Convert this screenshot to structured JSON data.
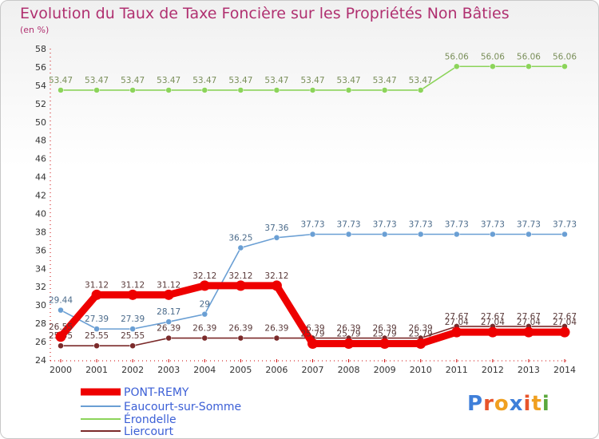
{
  "chart_data": {
    "type": "line",
    "title": "Evolution du Taux de Taxe Foncière sur les Propriétés Non Bâties",
    "subtitle": "(en %)",
    "x": [
      "2000",
      "2001",
      "2002",
      "2003",
      "2004",
      "2005",
      "2006",
      "2007",
      "2008",
      "2009",
      "2010",
      "2011",
      "2012",
      "2013",
      "2014"
    ],
    "ylim": [
      24,
      58
    ],
    "yticks": [
      24,
      26,
      28,
      30,
      32,
      34,
      36,
      38,
      40,
      42,
      44,
      46,
      48,
      50,
      52,
      54,
      56,
      58
    ],
    "grid": false,
    "legend_position": "bottom-left",
    "series": [
      {
        "name": "PONT-REMY",
        "color": "#ee0000",
        "values": [
          26.55,
          31.12,
          31.12,
          31.12,
          32.12,
          32.12,
          32.12,
          25.79,
          25.79,
          25.79,
          25.79,
          27.04,
          27.04,
          27.04,
          27.04
        ],
        "labels": [
          "26.55",
          "31.12",
          "31.12",
          "31.12",
          "32.12",
          "32.12",
          "32.12",
          "25.79",
          "25.79",
          "25.79",
          "25.79",
          "27.04",
          "27.04",
          "27.04",
          "27.04"
        ]
      },
      {
        "name": "Eaucourt-sur-Somme",
        "color": "#6a9fd4",
        "values": [
          29.44,
          27.39,
          27.39,
          28.17,
          29,
          36.25,
          37.36,
          37.73,
          37.73,
          37.73,
          37.73,
          37.73,
          37.73,
          37.73,
          37.73
        ],
        "labels": [
          "29.44",
          "27.39",
          "27.39",
          "28.17",
          "29",
          "36.25",
          "37.36",
          "37.73",
          "37.73",
          "37.73",
          "37.73",
          "37.73",
          "37.73",
          "37.73",
          "37.73"
        ]
      },
      {
        "name": "Érondelle",
        "color": "#8cd45a",
        "values": [
          53.47,
          53.47,
          53.47,
          53.47,
          53.47,
          53.47,
          53.47,
          53.47,
          53.47,
          53.47,
          53.47,
          56.06,
          56.06,
          56.06,
          56.06
        ],
        "labels": [
          "53.47",
          "53.47",
          "53.47",
          "53.47",
          "53.47",
          "53.47",
          "53.47",
          "53.47",
          "53.47",
          "53.47",
          "53.47",
          "56.06",
          "56.06",
          "56.06",
          "56.06"
        ]
      },
      {
        "name": "Liercourt",
        "color": "#7b2a2a",
        "values": [
          25.55,
          25.55,
          25.55,
          26.39,
          26.39,
          26.39,
          26.39,
          26.39,
          26.39,
          26.39,
          26.39,
          27.67,
          27.67,
          27.67,
          27.67
        ],
        "labels": [
          "25.55",
          "25.55",
          "25.55",
          "26.39",
          "26.39",
          "26.39",
          "26.39",
          "26.39",
          "26.39",
          "26.39",
          "26.39",
          "27.67",
          "27.67",
          "27.67",
          "27.67"
        ]
      }
    ]
  },
  "brand": {
    "letters": [
      "P",
      "r",
      "o",
      "x",
      "i",
      "t",
      "i"
    ],
    "colors": [
      "#3f7fd9",
      "#e8542a",
      "#f0a020",
      "#3f7fd9",
      "#e8542a",
      "#f0a020",
      "#5aa83c"
    ]
  }
}
